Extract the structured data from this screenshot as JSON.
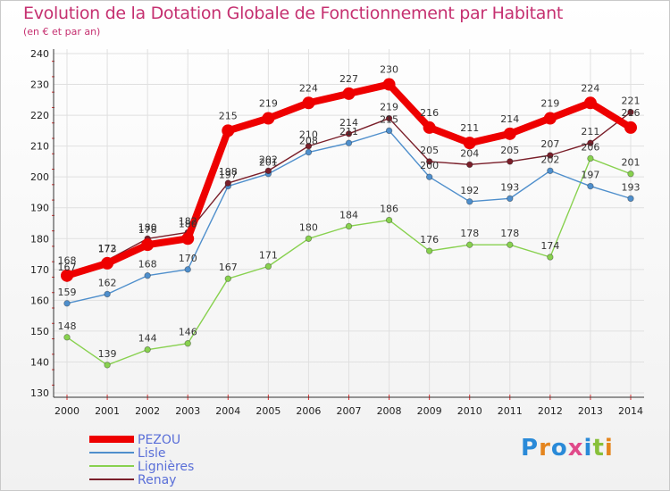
{
  "header": {
    "title": "Evolution de la Dotation Globale de Fonctionnement par Habitant",
    "subtitle": "(en € et par an)"
  },
  "brand": {
    "logo_text": "Proxiti"
  },
  "colors": {
    "background": "#ffffff",
    "grid": "#e0e0e0",
    "title": "#c53070",
    "legend_text": "#5a6fd8"
  },
  "chart_data": {
    "type": "line",
    "title": "Evolution de la Dotation Globale de Fonctionnement par Habitant",
    "subtitle": "(en € et par an)",
    "xlabel": "",
    "ylabel": "",
    "x": [
      "2000",
      "2001",
      "2002",
      "2003",
      "2004",
      "2005",
      "2006",
      "2007",
      "2008",
      "2009",
      "2010",
      "2011",
      "2012",
      "2013",
      "2014"
    ],
    "ylim": [
      130,
      240
    ],
    "yticks": [
      130,
      140,
      150,
      160,
      170,
      180,
      190,
      200,
      210,
      220,
      230,
      240
    ],
    "grid": true,
    "legend_position": "bottom-left",
    "series": [
      {
        "name": "PEZOU",
        "color": "#ee0000",
        "values": [
          168,
          172,
          178,
          180,
          215,
          219,
          224,
          227,
          230,
          216,
          211,
          214,
          219,
          224,
          216
        ]
      },
      {
        "name": "Lisle",
        "color": "#4f8fcc",
        "values": [
          159,
          162,
          168,
          170,
          197,
          201,
          208,
          211,
          215,
          200,
          192,
          193,
          202,
          197,
          193
        ]
      },
      {
        "name": "Lignières",
        "color": "#88d14f",
        "values": [
          148,
          139,
          144,
          146,
          167,
          171,
          180,
          184,
          186,
          176,
          178,
          178,
          174,
          206,
          201
        ]
      },
      {
        "name": "Renay",
        "color": "#7a1f2a",
        "values": [
          167,
          173,
          180,
          182,
          198,
          202,
          210,
          214,
          219,
          205,
          204,
          205,
          207,
          211,
          221
        ]
      }
    ]
  }
}
